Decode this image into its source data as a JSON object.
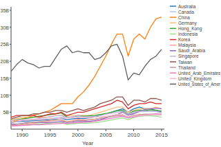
{
  "chart_data": {
    "type": "line",
    "x_label": "Year",
    "x": [
      1988,
      1989,
      1990,
      1991,
      1992,
      1993,
      1994,
      1995,
      1996,
      1997,
      1998,
      1999,
      2000,
      2001,
      2002,
      2003,
      2004,
      2005,
      2006,
      2007,
      2008,
      2009,
      2010,
      2011,
      2012,
      2013,
      2014,
      2015
    ],
    "xlim": [
      1988,
      2015.5
    ],
    "xticks": [
      1990,
      1995,
      2000,
      2005,
      2010,
      2015
    ],
    "ylim": [
      0,
      36000000000.0
    ],
    "yticks": [
      {
        "value": 5000000000.0,
        "label": "5B"
      },
      {
        "value": 10000000000.0,
        "label": "10B"
      },
      {
        "value": 15000000000.0,
        "label": "15B"
      },
      {
        "value": 20000000000.0,
        "label": "20B"
      },
      {
        "value": 25000000000.0,
        "label": "25B"
      },
      {
        "value": 30000000000.0,
        "label": "30B"
      },
      {
        "value": 35000000000.0,
        "label": "35B"
      }
    ],
    "grid": false,
    "legend": "right",
    "series": [
      {
        "name": "Australia",
        "color": "#1f77b4",
        "values": [
          2000000000.0,
          2200000000.0,
          2300000000.0,
          2400000000.0,
          2500000000.0,
          2600000000.0,
          2700000000.0,
          2800000000.0,
          3000000000.0,
          3200000000.0,
          2800000000.0,
          3000000000.0,
          3200000000.0,
          3100000000.0,
          3300000000.0,
          3600000000.0,
          4000000000.0,
          4500000000.0,
          5000000000.0,
          5500000000.0,
          6000000000.0,
          5000000000.0,
          6000000000.0,
          6500000000.0,
          6000000000.0,
          6000000000.0,
          5500000000.0,
          5000000000.0
        ]
      },
      {
        "name": "Canada",
        "color": "#aec7e8",
        "values": [
          2500000000.0,
          2600000000.0,
          2700000000.0,
          2800000000.0,
          2800000000.0,
          2900000000.0,
          3000000000.0,
          3100000000.0,
          3300000000.0,
          3500000000.0,
          3400000000.0,
          3600000000.0,
          3800000000.0,
          3600000000.0,
          3600000000.0,
          3800000000.0,
          4100000000.0,
          4500000000.0,
          5000000000.0,
          5300000000.0,
          5500000000.0,
          4200000000.0,
          4800000000.0,
          5200000000.0,
          5200000000.0,
          5300000000.0,
          5200000000.0,
          4800000000.0
        ]
      },
      {
        "name": "China",
        "color": "#ff7f0e",
        "values": [
          2000000000.0,
          2500000000.0,
          3000000000.0,
          3500000000.0,
          4000000000.0,
          4500000000.0,
          5000000000.0,
          5500000000.0,
          6500000000.0,
          7500000000.0,
          7500000000.0,
          7500000000.0,
          9500000000.0,
          11000000000.0,
          13000000000.0,
          15500000000.0,
          18500000000.0,
          21500000000.0,
          25000000000.0,
          28000000000.0,
          28000000000.0,
          21500000000.0,
          26500000000.0,
          28000000000.0,
          26500000000.0,
          30000000000.0,
          32500000000.0,
          33000000000.0
        ]
      },
      {
        "name": "Germany",
        "color": "#ffbb78",
        "values": [
          3000000000.0,
          3000000000.0,
          3500000000.0,
          3500000000.0,
          3500000000.0,
          3500000000.0,
          3500000000.0,
          3500000000.0,
          4000000000.0,
          4000000000.0,
          4000000000.0,
          4000000000.0,
          4000000000.0,
          4000000000.0,
          4000000000.0,
          4500000000.0,
          5000000000.0,
          5500000000.0,
          6000000000.0,
          6500000000.0,
          6500000000.0,
          5000000000.0,
          5500000000.0,
          6000000000.0,
          6000000000.0,
          6000000000.0,
          6500000000.0,
          6000000000.0
        ]
      },
      {
        "name": "Hong_Kong",
        "color": "#2ca02c",
        "values": [
          2500000000.0,
          2800000000.0,
          3000000000.0,
          3200000000.0,
          3500000000.0,
          3800000000.0,
          4000000000.0,
          4300000000.0,
          4500000000.0,
          4800000000.0,
          3600000000.0,
          3500000000.0,
          4000000000.0,
          3800000000.0,
          3900000000.0,
          4000000000.0,
          4300000000.0,
          4600000000.0,
          5000000000.0,
          5500000000.0,
          5500000000.0,
          4500000000.0,
          5300000000.0,
          5600000000.0,
          5500000000.0,
          5700000000.0,
          5600000000.0,
          5300000000.0
        ]
      },
      {
        "name": "Indonesia",
        "color": "#98df8a",
        "values": [
          1000000000.0,
          1100000000.0,
          1200000000.0,
          1300000000.0,
          1400000000.0,
          1500000000.0,
          1600000000.0,
          1800000000.0,
          2000000000.0,
          2100000000.0,
          1400000000.0,
          1500000000.0,
          1800000000.0,
          1700000000.0,
          1800000000.0,
          1900000000.0,
          2100000000.0,
          2400000000.0,
          2700000000.0,
          3000000000.0,
          3300000000.0,
          2800000000.0,
          3400000000.0,
          3800000000.0,
          3900000000.0,
          3900000000.0,
          3800000000.0,
          3500000000.0
        ]
      },
      {
        "name": "Korea",
        "color": "#d62728",
        "values": [
          3500000000.0,
          4000000000.0,
          4000000000.0,
          4000000000.0,
          4000000000.0,
          3500000000.0,
          4000000000.0,
          4500000000.0,
          4500000000.0,
          5000000000.0,
          4000000000.0,
          4500000000.0,
          5000000000.0,
          5000000000.0,
          5500000000.0,
          6000000000.0,
          6500000000.0,
          7000000000.0,
          7500000000.0,
          8500000000.0,
          8000000000.0,
          6000000000.0,
          7000000000.0,
          7500000000.0,
          7500000000.0,
          8000000000.0,
          7500000000.0,
          7500000000.0
        ]
      },
      {
        "name": "Malaysia",
        "color": "#ff9896",
        "values": [
          1000000000.0,
          1100000000.0,
          1300000000.0,
          1500000000.0,
          1700000000.0,
          1900000000.0,
          2100000000.0,
          2400000000.0,
          2600000000.0,
          2800000000.0,
          2200000000.0,
          2500000000.0,
          2900000000.0,
          2700000000.0,
          2800000000.0,
          2900000000.0,
          3200000000.0,
          3400000000.0,
          3700000000.0,
          4000000000.0,
          4200000000.0,
          3600000000.0,
          4000000000.0,
          4300000000.0,
          4200000000.0,
          4300000000.0,
          4400000000.0,
          4100000000.0
        ]
      },
      {
        "name": "Saudi_Arabia",
        "color": "#9467bd",
        "values": [
          1500000000.0,
          1500000000.0,
          1700000000.0,
          2000000000.0,
          2000000000.0,
          2000000000.0,
          1900000000.0,
          2000000000.0,
          2100000000.0,
          2200000000.0,
          2000000000.0,
          2100000000.0,
          2300000000.0,
          2300000000.0,
          2300000000.0,
          2500000000.0,
          2800000000.0,
          3300000000.0,
          3800000000.0,
          4300000000.0,
          5000000000.0,
          4100000000.0,
          4500000000.0,
          5200000000.0,
          5800000000.0,
          6000000000.0,
          6200000000.0,
          6000000000.0
        ]
      },
      {
        "name": "Singapore",
        "color": "#c5b0d5",
        "values": [
          2000000000.0,
          2200000000.0,
          2500000000.0,
          2700000000.0,
          2900000000.0,
          3100000000.0,
          3400000000.0,
          3700000000.0,
          3900000000.0,
          4000000000.0,
          3400000000.0,
          3600000000.0,
          4000000000.0,
          3600000000.0,
          3600000000.0,
          3700000000.0,
          4000000000.0,
          4400000000.0,
          4700000000.0,
          5000000000.0,
          5200000000.0,
          4400000000.0,
          5000000000.0,
          5300000000.0,
          5300000000.0,
          5400000000.0,
          5300000000.0,
          4900000000.0
        ]
      },
      {
        "name": "Taiwan",
        "color": "#8c564b",
        "values": [
          3000000000.0,
          3500000000.0,
          4000000000.0,
          4000000000.0,
          4500000000.0,
          4500000000.0,
          5000000000.0,
          5000000000.0,
          5500000000.0,
          5500000000.0,
          5000000000.0,
          5500000000.0,
          6000000000.0,
          5500000000.0,
          6000000000.0,
          6500000000.0,
          7500000000.0,
          8000000000.0,
          8500000000.0,
          9500000000.0,
          9500000000.0,
          7000000000.0,
          8500000000.0,
          8500000000.0,
          8000000000.0,
          9000000000.0,
          9000000000.0,
          8500000000.0
        ]
      },
      {
        "name": "Thailand",
        "color": "#c49c94",
        "values": [
          1200000000.0,
          1400000000.0,
          1600000000.0,
          1800000000.0,
          2000000000.0,
          2200000000.0,
          2400000000.0,
          2600000000.0,
          2700000000.0,
          2600000000.0,
          2100000000.0,
          2300000000.0,
          2600000000.0,
          2500000000.0,
          2700000000.0,
          2900000000.0,
          3200000000.0,
          3500000000.0,
          3700000000.0,
          3900000000.0,
          4100000000.0,
          3500000000.0,
          4000000000.0,
          4200000000.0,
          4400000000.0,
          4400000000.0,
          4300000000.0,
          4200000000.0
        ]
      },
      {
        "name": "United_Arab_Emirates",
        "color": "#e377c2",
        "values": [
          1000000000.0,
          1000000000.0,
          1100000000.0,
          1200000000.0,
          1300000000.0,
          1300000000.0,
          1400000000.0,
          1500000000.0,
          1600000000.0,
          1700000000.0,
          1700000000.0,
          1800000000.0,
          1900000000.0,
          2000000000.0,
          2100000000.0,
          2300000000.0,
          2600000000.0,
          2900000000.0,
          3200000000.0,
          3500000000.0,
          3800000000.0,
          3300000000.0,
          3600000000.0,
          3900000000.0,
          4100000000.0,
          4300000000.0,
          4500000000.0,
          4400000000.0
        ]
      },
      {
        "name": "United_Kingdom",
        "color": "#f7b6d2",
        "values": [
          2500000000.0,
          2700000000.0,
          2800000000.0,
          2700000000.0,
          2700000000.0,
          2800000000.0,
          2900000000.0,
          3000000000.0,
          3100000000.0,
          3200000000.0,
          3300000000.0,
          3400000000.0,
          3500000000.0,
          3400000000.0,
          3400000000.0,
          3500000000.0,
          3600000000.0,
          3800000000.0,
          4000000000.0,
          4300000000.0,
          4300000000.0,
          3500000000.0,
          3800000000.0,
          4000000000.0,
          4100000000.0,
          4200000000.0,
          4300000000.0,
          4200000000.0
        ]
      },
      {
        "name": "United_States_of_Amer",
        "color": "#5f5f5f",
        "values": [
          17000000000.0,
          19000000000.0,
          20500000000.0,
          19500000000.0,
          19000000000.0,
          18000000000.0,
          18500000000.0,
          18500000000.0,
          21000000000.0,
          23500000000.0,
          24500000000.0,
          22500000000.0,
          23000000000.0,
          22500000000.0,
          22500000000.0,
          20500000000.0,
          21000000000.0,
          22500000000.0,
          24500000000.0,
          25000000000.0,
          21500000000.0,
          14500000000.0,
          16500000000.0,
          16000000000.0,
          18500000000.0,
          20500000000.0,
          21500000000.0,
          23500000000.0
        ]
      }
    ]
  }
}
